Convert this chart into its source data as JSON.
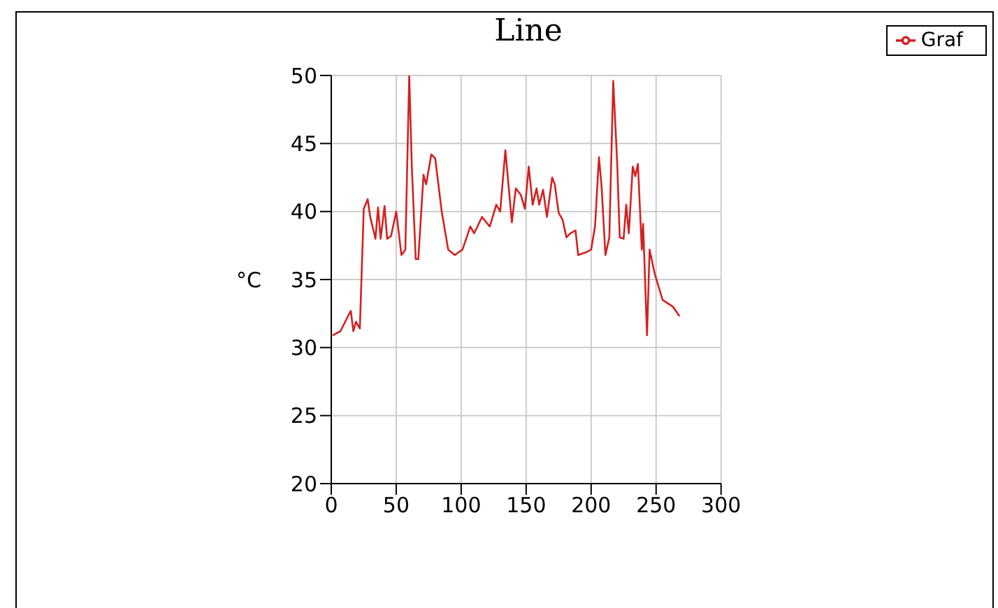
{
  "chart_data": {
    "type": "line",
    "title": "Line",
    "ylabel": "°C",
    "xlim": [
      0,
      300
    ],
    "xticks": [
      0,
      50,
      100,
      150,
      200,
      250,
      300
    ],
    "ylim": [
      20,
      50
    ],
    "yticks": [
      20,
      25,
      30,
      35,
      40,
      45,
      50
    ],
    "grid": true,
    "legend": "top right",
    "marker": "none",
    "line_style": "solid",
    "x": [
      1,
      7,
      15,
      17,
      19,
      22,
      25,
      28,
      30,
      34,
      36,
      38,
      41,
      43,
      46,
      50,
      54,
      57,
      60,
      62,
      65,
      67,
      71,
      73,
      77,
      80,
      85,
      90,
      95,
      101,
      107,
      110,
      116,
      122,
      127,
      130,
      134,
      139,
      142,
      146,
      149,
      152,
      155,
      158,
      160,
      163,
      166,
      170,
      172,
      175,
      178,
      181,
      184,
      188,
      190,
      196,
      200,
      203,
      206,
      208,
      211,
      214,
      217,
      220,
      222,
      225,
      227,
      229,
      232,
      234,
      236,
      239,
      240,
      243,
      245,
      249,
      255,
      263,
      268
    ],
    "series": [
      {
        "name": "Graf",
        "color": "#d42020",
        "values": [
          30.9,
          31.2,
          32.7,
          31.2,
          31.9,
          31.4,
          40.2,
          40.9,
          39.6,
          38.0,
          40.3,
          38.0,
          40.4,
          38.0,
          38.2,
          40.0,
          36.8,
          37.2,
          50.0,
          43.3,
          36.5,
          36.5,
          42.7,
          42.0,
          44.2,
          43.9,
          40.0,
          37.2,
          36.8,
          37.2,
          38.9,
          38.4,
          39.6,
          38.9,
          40.5,
          40.0,
          44.5,
          39.2,
          41.7,
          41.2,
          40.2,
          43.3,
          40.5,
          41.7,
          40.5,
          41.6,
          39.6,
          42.5,
          42.0,
          39.9,
          39.4,
          38.1,
          38.4,
          38.6,
          36.8,
          37.0,
          37.2,
          38.9,
          44.0,
          41.9,
          36.8,
          38.1,
          49.6,
          43.7,
          38.1,
          38.0,
          40.5,
          38.4,
          43.3,
          42.6,
          43.5,
          37.2,
          39.1,
          30.9,
          37.2,
          35.4,
          33.5,
          33.0,
          32.3
        ]
      }
    ]
  }
}
